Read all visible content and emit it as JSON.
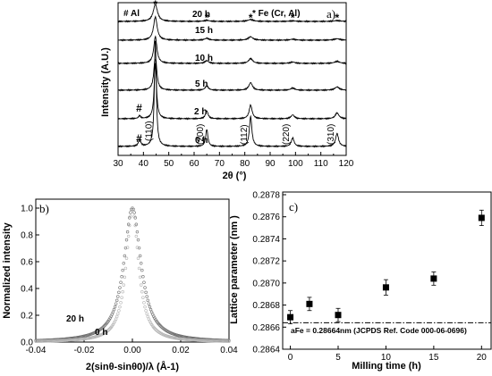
{
  "chart_data": [
    {
      "panel": "a)",
      "type": "line",
      "xlabel": "2θ (°)",
      "ylabel": "Intensity (A.U.)",
      "xlim": [
        30,
        120
      ],
      "x_ticks": [
        "30",
        "40",
        "50",
        "60",
        "70",
        "80",
        "90",
        "100",
        "110",
        "120"
      ],
      "legend": [
        "# Al",
        "* Fe (Cr, Al)"
      ],
      "series": [
        {
          "name": "0 h"
        },
        {
          "name": "2 h"
        },
        {
          "name": "5 h"
        },
        {
          "name": "10 h"
        },
        {
          "name": "15 h"
        },
        {
          "name": "20 h"
        }
      ],
      "fe_peaks": [
        {
          "x": 44.7,
          "label": "(110)",
          "h0": 1.0
        },
        {
          "x": 65.0,
          "label": "(200)",
          "h0": 0.16
        },
        {
          "x": 82.3,
          "label": "(112)",
          "h0": 0.28
        },
        {
          "x": 98.9,
          "label": "(220)",
          "h0": 0.08
        },
        {
          "x": 116.4,
          "label": "(310)",
          "h0": 0.12
        }
      ],
      "al_peak": {
        "x": 38.5,
        "marker": "#"
      },
      "star_marker": "*",
      "hash_marker": "#"
    },
    {
      "panel": "b)",
      "type": "line",
      "xlabel": "2(sinθ-sinθ0)/λ (Å-1)",
      "ylabel": "Normalized intensity",
      "xlim": [
        -0.04,
        0.04
      ],
      "ylim": [
        0.0,
        1.0
      ],
      "x_ticks": [
        "-0.04",
        "-0.02",
        "0.00",
        "0.02",
        "0.04"
      ],
      "y_ticks": [
        "0.0",
        "0.2",
        "0.4",
        "0.6",
        "0.8",
        "1.0"
      ],
      "series": [
        {
          "name": "20 h",
          "fwhm": 0.0086
        },
        {
          "name": "0 h",
          "fwhm": 0.0062
        }
      ]
    },
    {
      "panel": "c)",
      "type": "scatter",
      "xlabel": "Milling time (h)",
      "ylabel": "Lattice parameter (nm )",
      "xlim": [
        -0.8,
        21
      ],
      "ylim": [
        0.2864,
        0.2878
      ],
      "x_ticks": [
        "0",
        "5",
        "10",
        "15",
        "20"
      ],
      "y_ticks": [
        "0.2864",
        "0.2866",
        "0.2868",
        "0.2870",
        "0.2872",
        "0.2874",
        "0.2876",
        "0.2878"
      ],
      "points": [
        {
          "x": 0,
          "y": 0.28669,
          "err": 6e-05
        },
        {
          "x": 2,
          "y": 0.28681,
          "err": 6e-05
        },
        {
          "x": 5,
          "y": 0.28671,
          "err": 6e-05
        },
        {
          "x": 10,
          "y": 0.28696,
          "err": 7e-05
        },
        {
          "x": 15,
          "y": 0.28704,
          "err": 6e-05
        },
        {
          "x": 20,
          "y": 0.28759,
          "err": 7e-05
        }
      ],
      "reference": {
        "y": 0.28664,
        "label": "aFe = 0.28664nm (JCPDS Ref. Code 000-06-0696)"
      }
    }
  ]
}
